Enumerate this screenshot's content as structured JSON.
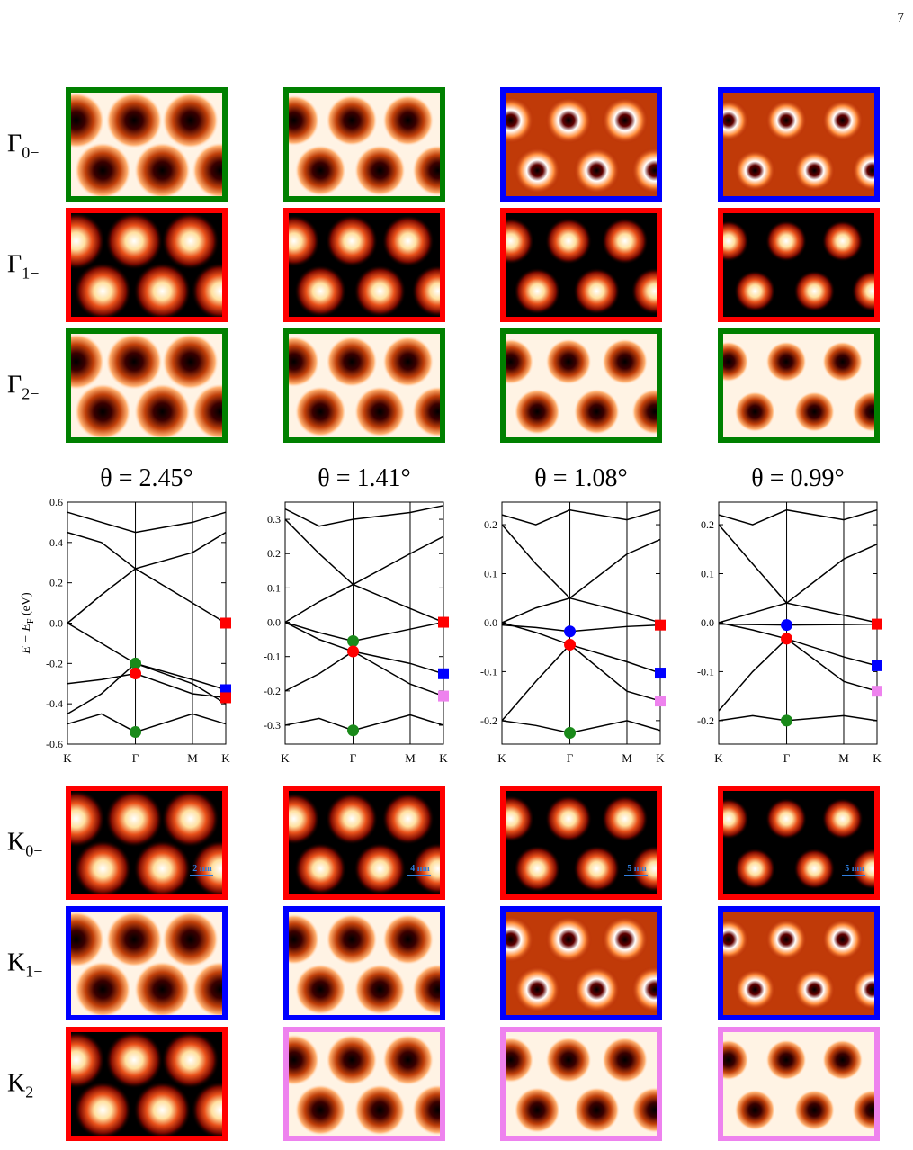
{
  "page_number": "7",
  "row_labels_top": [
    {
      "main": "Γ",
      "sub": "0−"
    },
    {
      "main": "Γ",
      "sub": "1−"
    },
    {
      "main": "Γ",
      "sub": "2−"
    }
  ],
  "row_labels_bottom": [
    {
      "main": "K",
      "sub": "0−"
    },
    {
      "main": "K",
      "sub": "1−"
    },
    {
      "main": "K",
      "sub": "2−"
    }
  ],
  "panels_top": {
    "borders": [
      [
        "#008000",
        "#008000",
        "#0000ff",
        "#0000ff"
      ],
      [
        "#ff0000",
        "#ff0000",
        "#ff0000",
        "#ff0000"
      ],
      [
        "#008000",
        "#008000",
        "#008000",
        "#008000"
      ]
    ],
    "styles": [
      [
        "holes",
        "holes",
        "rings",
        "rings"
      ],
      [
        "spots",
        "spots",
        "spots",
        "spots"
      ],
      [
        "holes",
        "holes",
        "holes",
        "holes"
      ]
    ]
  },
  "panels_bottom": {
    "borders": [
      [
        "#ff0000",
        "#ff0000",
        "#ff0000",
        "#ff0000"
      ],
      [
        "#0000ff",
        "#0000ff",
        "#0000ff",
        "#0000ff"
      ],
      [
        "#ff0000",
        "#ee82ee",
        "#ee82ee",
        "#ee82ee"
      ]
    ],
    "styles": [
      [
        "spots",
        "spots",
        "spots",
        "spots"
      ],
      [
        "holes",
        "holes",
        "rings",
        "rings"
      ],
      [
        "spots",
        "holes",
        "holes",
        "holes"
      ]
    ]
  },
  "scale_bars": [
    "2 nm",
    "4 nm",
    "5 nm",
    "5 nm"
  ],
  "chart_data": [
    {
      "type": "line",
      "title": "θ = 2.45°",
      "ylabel": {
        "main": "E − E",
        "sub": "F",
        "unit": " (eV)"
      },
      "x": [
        0,
        0.5,
        1,
        1.84,
        2.33
      ],
      "xlim": [
        0,
        2.33
      ],
      "xticks": [
        {
          "value": 0,
          "label": "K"
        },
        {
          "value": 1,
          "label": "Γ"
        },
        {
          "value": 1.84,
          "label": "M"
        },
        {
          "value": 2.33,
          "label": "K"
        }
      ],
      "ylim": [
        -0.6,
        0.6
      ],
      "yticks": [
        -0.6,
        -0.4,
        -0.2,
        {
          "value": 0,
          "label": "0.0"
        },
        0.2,
        0.4,
        0.6
      ],
      "bands": [
        [
          0.0,
          0.14,
          0.27,
          0.1,
          0.0
        ],
        [
          0.0,
          -0.1,
          -0.2,
          -0.28,
          -0.33
        ],
        [
          -0.3,
          -0.28,
          -0.25,
          -0.35,
          -0.37
        ],
        [
          0.45,
          0.4,
          0.27,
          0.35,
          0.45
        ],
        [
          0.55,
          0.5,
          0.45,
          0.5,
          0.55
        ],
        [
          -0.5,
          -0.45,
          -0.54,
          -0.45,
          -0.5
        ],
        [
          -0.45,
          -0.35,
          -0.2,
          -0.3,
          -0.4
        ]
      ],
      "markers": [
        {
          "shape": "circle",
          "color": "#1a8a1a",
          "x": 1,
          "y": -0.2
        },
        {
          "shape": "circle",
          "color": "#ff0000",
          "x": 1,
          "y": -0.25
        },
        {
          "shape": "circle",
          "color": "#1a8a1a",
          "x": 1,
          "y": -0.54
        },
        {
          "shape": "square",
          "color": "#ff0000",
          "x": 2.33,
          "y": 0.0
        },
        {
          "shape": "square",
          "color": "#0000ff",
          "x": 2.33,
          "y": -0.33
        },
        {
          "shape": "square",
          "color": "#ff0000",
          "x": 2.33,
          "y": -0.37
        }
      ]
    },
    {
      "type": "line",
      "title": "θ = 1.41°",
      "x": [
        0,
        0.5,
        1,
        1.84,
        2.33
      ],
      "xlim": [
        0,
        2.33
      ],
      "xticks": [
        {
          "value": 0,
          "label": "K"
        },
        {
          "value": 1,
          "label": "Γ"
        },
        {
          "value": 1.84,
          "label": "M"
        },
        {
          "value": 2.33,
          "label": "K"
        }
      ],
      "ylim": [
        -0.355,
        0.35
      ],
      "yticks": [
        -0.3,
        -0.2,
        -0.1,
        {
          "value": 0,
          "label": "0.0"
        },
        0.1,
        0.2,
        0.3
      ],
      "bands": [
        [
          0.0,
          -0.03,
          -0.055,
          -0.02,
          0.0
        ],
        [
          0.0,
          -0.05,
          -0.085,
          -0.12,
          -0.15
        ],
        [
          -0.2,
          -0.15,
          -0.085,
          -0.18,
          -0.215
        ],
        [
          0.0,
          0.06,
          0.11,
          0.04,
          0.0
        ],
        [
          0.3,
          0.2,
          0.11,
          0.2,
          0.25
        ],
        [
          -0.3,
          -0.28,
          -0.315,
          -0.27,
          -0.3
        ],
        [
          0.33,
          0.28,
          0.3,
          0.32,
          0.34
        ]
      ],
      "markers": [
        {
          "shape": "circle",
          "color": "#1a8a1a",
          "x": 1,
          "y": -0.055
        },
        {
          "shape": "circle",
          "color": "#ff0000",
          "x": 1,
          "y": -0.085
        },
        {
          "shape": "circle",
          "color": "#1a8a1a",
          "x": 1,
          "y": -0.315
        },
        {
          "shape": "square",
          "color": "#ff0000",
          "x": 2.33,
          "y": 0.0
        },
        {
          "shape": "square",
          "color": "#0000ff",
          "x": 2.33,
          "y": -0.15
        },
        {
          "shape": "square",
          "color": "#ee82ee",
          "x": 2.33,
          "y": -0.215
        }
      ]
    },
    {
      "type": "line",
      "title": "θ = 1.08°",
      "x": [
        0,
        0.5,
        1,
        1.84,
        2.33
      ],
      "xlim": [
        0,
        2.33
      ],
      "xticks": [
        {
          "value": 0,
          "label": "K"
        },
        {
          "value": 1,
          "label": "Γ"
        },
        {
          "value": 1.84,
          "label": "M"
        },
        {
          "value": 2.33,
          "label": "K"
        }
      ],
      "ylim": [
        -0.248,
        0.246
      ],
      "yticks": [
        -0.2,
        -0.1,
        {
          "value": 0,
          "label": "0.0"
        },
        0.1,
        0.2
      ],
      "bands": [
        [
          -0.005,
          -0.01,
          -0.018,
          -0.008,
          -0.005
        ],
        [
          0.0,
          -0.02,
          -0.045,
          -0.08,
          -0.103
        ],
        [
          -0.2,
          -0.12,
          -0.045,
          -0.14,
          -0.16
        ],
        [
          0.0,
          0.03,
          0.05,
          0.02,
          0.0
        ],
        [
          0.2,
          0.12,
          0.05,
          0.14,
          0.17
        ],
        [
          -0.2,
          -0.21,
          -0.225,
          -0.2,
          -0.22
        ],
        [
          0.22,
          0.2,
          0.23,
          0.21,
          0.23
        ]
      ],
      "markers": [
        {
          "shape": "circle",
          "color": "#0000ff",
          "x": 1,
          "y": -0.018
        },
        {
          "shape": "circle",
          "color": "#ff0000",
          "x": 1,
          "y": -0.045
        },
        {
          "shape": "circle",
          "color": "#1a8a1a",
          "x": 1,
          "y": -0.225
        },
        {
          "shape": "square",
          "color": "#ff0000",
          "x": 2.33,
          "y": -0.005
        },
        {
          "shape": "square",
          "color": "#0000ff",
          "x": 2.33,
          "y": -0.103
        },
        {
          "shape": "square",
          "color": "#ee82ee",
          "x": 2.33,
          "y": -0.16
        }
      ]
    },
    {
      "type": "line",
      "title": "θ = 0.99°",
      "x": [
        0,
        0.5,
        1,
        1.84,
        2.33
      ],
      "xlim": [
        0,
        2.33
      ],
      "xticks": [
        {
          "value": 0,
          "label": "K"
        },
        {
          "value": 1,
          "label": "Γ"
        },
        {
          "value": 1.84,
          "label": "M"
        },
        {
          "value": 2.33,
          "label": "K"
        }
      ],
      "ylim": [
        -0.248,
        0.246
      ],
      "yticks": [
        -0.2,
        -0.1,
        {
          "value": 0,
          "label": "0.0"
        },
        0.1,
        0.2
      ],
      "bands": [
        [
          -0.003,
          -0.004,
          -0.005,
          -0.004,
          -0.003
        ],
        [
          0.0,
          -0.015,
          -0.033,
          -0.07,
          -0.088
        ],
        [
          -0.18,
          -0.1,
          -0.033,
          -0.12,
          -0.14
        ],
        [
          0.0,
          0.02,
          0.04,
          0.015,
          0.0
        ],
        [
          0.2,
          0.12,
          0.04,
          0.13,
          0.16
        ],
        [
          -0.2,
          -0.19,
          -0.2,
          -0.19,
          -0.2
        ],
        [
          0.22,
          0.2,
          0.23,
          0.21,
          0.23
        ]
      ],
      "markers": [
        {
          "shape": "circle",
          "color": "#0000ff",
          "x": 1,
          "y": -0.005
        },
        {
          "shape": "circle",
          "color": "#ff0000",
          "x": 1,
          "y": -0.033
        },
        {
          "shape": "circle",
          "color": "#1a8a1a",
          "x": 1,
          "y": -0.2
        },
        {
          "shape": "square",
          "color": "#ff0000",
          "x": 2.33,
          "y": -0.003
        },
        {
          "shape": "square",
          "color": "#0000ff",
          "x": 2.33,
          "y": -0.088
        },
        {
          "shape": "square",
          "color": "#ee82ee",
          "x": 2.33,
          "y": -0.14
        }
      ]
    }
  ]
}
